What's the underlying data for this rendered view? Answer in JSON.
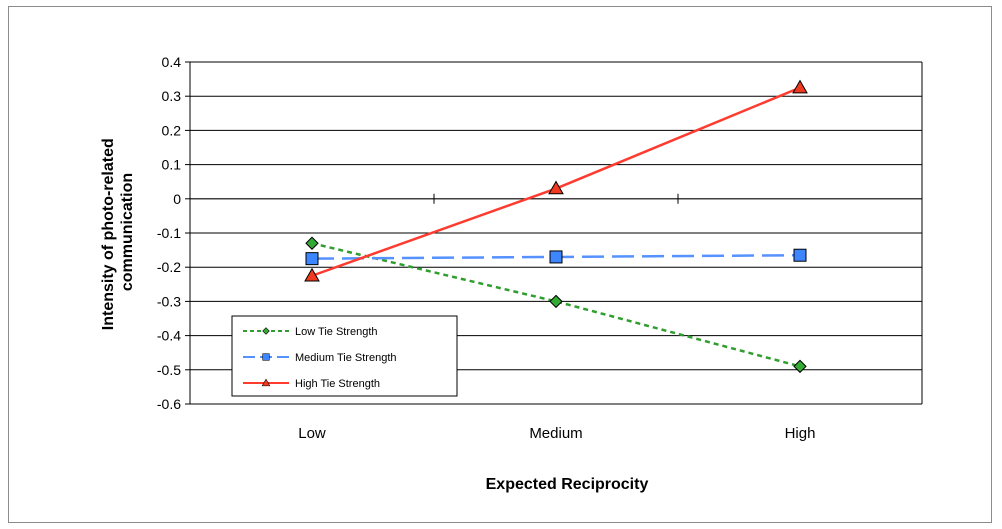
{
  "chart_data": {
    "type": "line",
    "categories": [
      "Low",
      "Medium",
      "High"
    ],
    "xlabel": "Expected Reciprocity",
    "ylabel": "Intensity of photo-related communication",
    "ylabel_lines": [
      "Intensity of photo-related",
      "communication"
    ],
    "ylim": [
      -0.6,
      0.4
    ],
    "yticks": [
      0.4,
      0.3,
      0.2,
      0.1,
      0,
      -0.1,
      -0.2,
      -0.3,
      -0.4,
      -0.5,
      -0.6
    ],
    "ytick_labels": [
      "0.4",
      "0.3",
      "0.2",
      "0.1",
      "0",
      "-0.1",
      "-0.2",
      "-0.3",
      "-0.4",
      "-0.5",
      "-0.6"
    ],
    "grid": true,
    "legend_position": "bottom-left",
    "series": [
      {
        "name": "Low Tie Strength",
        "values": [
          -0.13,
          -0.3,
          -0.49
        ],
        "color": "#2e9e2e",
        "line": "dotted",
        "marker": "diamond",
        "marker_fill": "#33aa33"
      },
      {
        "name": "Medium Tie Strength",
        "values": [
          -0.175,
          -0.17,
          -0.165
        ],
        "color": "#5591ff",
        "line": "dashed",
        "marker": "square",
        "marker_fill": "#3d86ff"
      },
      {
        "name": "High Tie Strength",
        "values": [
          -0.225,
          0.03,
          0.325
        ],
        "color": "#ff3b2f",
        "line": "solid",
        "marker": "triangle",
        "marker_fill": "#f03a20"
      }
    ]
  }
}
